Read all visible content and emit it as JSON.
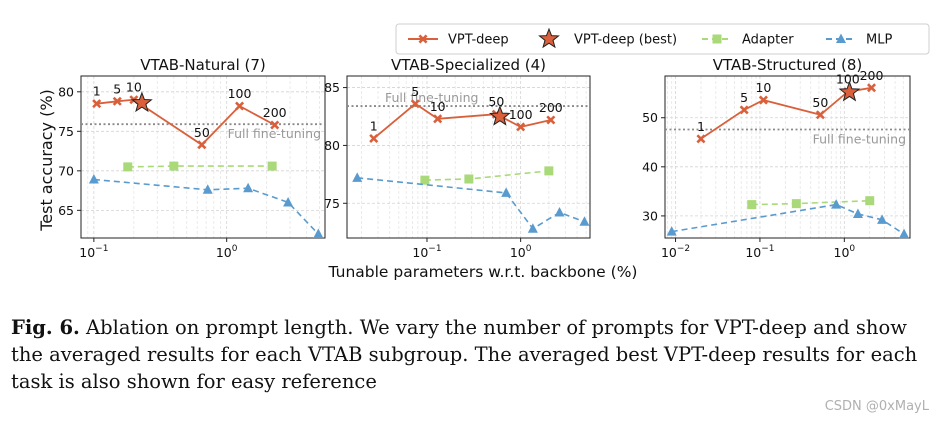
{
  "legend": {
    "items": [
      {
        "label": "VPT-deep",
        "color": "#d9603b",
        "marker": "x",
        "dash": "solid"
      },
      {
        "label": "VPT-deep (best)",
        "color": "#d9603b",
        "marker": "star",
        "dash": "none"
      },
      {
        "label": "Adapter",
        "color": "#a9d978",
        "marker": "square",
        "dash": "dashed"
      },
      {
        "label": "MLP",
        "color": "#5a9bcf",
        "marker": "triangle",
        "dash": "dashed"
      }
    ]
  },
  "shared_ylabel": "Test accuracy (%)",
  "shared_xlabel": "Tunable parameters w.r.t. backbone (%)",
  "reference_label": "Full fine-tuning",
  "caption": {
    "prefix": "Fig. 6.",
    "text": "Ablation on prompt length. We vary the number of prompts for VPT-deep and show the averaged results for each VTAB subgroup. The averaged best VPT-deep results for each task is also shown for easy reference"
  },
  "watermark": "CSDN @0xMayL",
  "chart_data": [
    {
      "type": "line",
      "title": "VTAB-Natural (7)",
      "xscale": "log",
      "xlim": [
        0.08,
        5.5
      ],
      "ylim": [
        61.5,
        82
      ],
      "yticks": [
        65,
        70,
        75,
        80
      ],
      "xticks": [
        {
          "value": 0.1,
          "label": "10^-1"
        },
        {
          "value": 1,
          "label": "10^0"
        }
      ],
      "grid": true,
      "full_finetune": 75.9,
      "ref_label_pos": "below-right",
      "series": [
        {
          "name": "VPT-deep",
          "x": [
            0.105,
            0.15,
            0.2,
            0.65,
            1.25,
            2.3
          ],
          "y": [
            78.5,
            78.8,
            79.0,
            73.3,
            78.2,
            75.8
          ],
          "labels": [
            "1",
            "5",
            "10",
            "50",
            "100",
            "200"
          ]
        },
        {
          "name": "VPT-deep (best)",
          "x": [
            0.23
          ],
          "y": [
            78.6
          ]
        },
        {
          "name": "Adapter",
          "x": [
            0.18,
            0.4,
            2.2
          ],
          "y": [
            70.5,
            70.6,
            70.6
          ]
        },
        {
          "name": "MLP",
          "x": [
            0.1,
            0.72,
            1.45,
            2.9,
            4.9
          ],
          "y": [
            68.9,
            67.6,
            67.8,
            66.0,
            62.0
          ]
        }
      ]
    },
    {
      "type": "line",
      "title": "VTAB-Specialized (4)",
      "xscale": "log",
      "xlim": [
        0.014,
        5.5
      ],
      "ylim": [
        72,
        86
      ],
      "yticks": [
        75,
        80,
        85
      ],
      "xticks": [
        {
          "value": 0.1,
          "label": "10^-1"
        },
        {
          "value": 1,
          "label": "10^0"
        }
      ],
      "grid": true,
      "full_finetune": 83.4,
      "ref_label_pos": "above-left",
      "series": [
        {
          "name": "VPT-deep",
          "x": [
            0.027,
            0.075,
            0.13,
            0.55,
            1.0,
            2.1
          ],
          "y": [
            80.6,
            83.6,
            82.3,
            82.7,
            81.6,
            82.2
          ],
          "labels": [
            "1",
            "5",
            "10",
            "50",
            "100",
            "200"
          ]
        },
        {
          "name": "VPT-deep (best)",
          "x": [
            0.6
          ],
          "y": [
            82.5
          ]
        },
        {
          "name": "Adapter",
          "x": [
            0.095,
            0.28,
            2.0
          ],
          "y": [
            77.0,
            77.1,
            77.8
          ]
        },
        {
          "name": "MLP",
          "x": [
            0.018,
            0.7,
            1.35,
            2.6,
            4.8
          ],
          "y": [
            77.2,
            75.9,
            72.8,
            74.2,
            73.4
          ]
        }
      ]
    },
    {
      "type": "line",
      "title": "VTAB-Structured (8)",
      "xscale": "log",
      "xlim": [
        0.0075,
        6
      ],
      "ylim": [
        25.5,
        58.5
      ],
      "yticks": [
        30,
        40,
        50
      ],
      "xticks": [
        {
          "value": 0.01,
          "label": "10^-2"
        },
        {
          "value": 0.1,
          "label": "10^-1"
        },
        {
          "value": 1,
          "label": "10^0"
        }
      ],
      "grid": true,
      "full_finetune": 47.6,
      "ref_label_pos": "below-right",
      "series": [
        {
          "name": "VPT-deep",
          "x": [
            0.02,
            0.065,
            0.11,
            0.52,
            1.1,
            2.1
          ],
          "y": [
            45.7,
            51.6,
            53.6,
            50.6,
            55.3,
            56.1
          ],
          "labels": [
            "1",
            "5",
            "10",
            "50",
            "100",
            "200"
          ]
        },
        {
          "name": "VPT-deep (best)",
          "x": [
            1.15
          ],
          "y": [
            55.2
          ]
        },
        {
          "name": "Adapter",
          "x": [
            0.08,
            0.27,
            2.0
          ],
          "y": [
            32.3,
            32.5,
            33.1
          ]
        },
        {
          "name": "MLP",
          "x": [
            0.009,
            0.8,
            1.45,
            2.8,
            5.1
          ],
          "y": [
            26.8,
            32.3,
            30.4,
            29.2,
            26.3
          ]
        }
      ]
    }
  ]
}
